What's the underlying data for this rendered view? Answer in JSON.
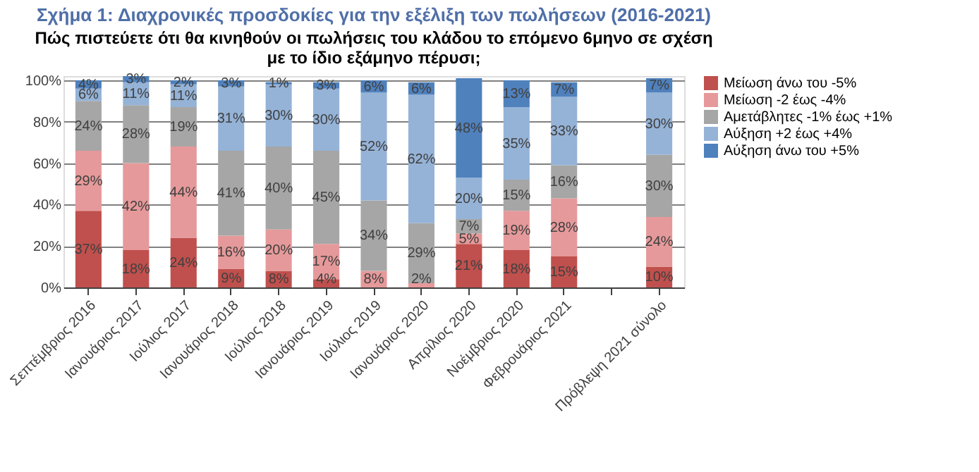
{
  "chart_data": {
    "type": "bar",
    "stacked": true,
    "title": "Σχήμα 1: Διαχρονικές προσδοκίες για την εξέλιξη των πωλήσεων (2016-2021)",
    "subtitle": "Πώς πιστεύετε ότι θα κινηθούν οι πωλήσεις του κλάδου το επόμενο 6μηνο σε σχέση\nμε το ίδιο εξάμηνο πέρυσι;",
    "categories": [
      "Σεπτέμβριος 2016",
      "Ιανουάριος 2017",
      "Ιούλιος 2017",
      "Ιανουάριος 2018",
      "Ιούλιος 2018",
      "Ιανουάριος 2019",
      "Ιούλιος 2019",
      "Ιανουάριος 2020",
      "Απρίλιος 2020",
      "Νοέμβριος 2020",
      "Φεβρουάριος 2021",
      null,
      "Πρόβλεψη 2021 σύνολο"
    ],
    "series": [
      {
        "name": "Μείωση άνω του -5%",
        "color": "#c0504d",
        "values": [
          37,
          18,
          24,
          9,
          8,
          4,
          null,
          null,
          21,
          18,
          15,
          null,
          10
        ],
        "value_labels": [
          "37%",
          "18%",
          "24%",
          "9%",
          "8%",
          "4%",
          null,
          null,
          "21%",
          "18%",
          "15%",
          null,
          "10%"
        ]
      },
      {
        "name": "Μείωση -2 έως -4%",
        "color": "#e6999a",
        "values": [
          29,
          42,
          44,
          16,
          20,
          17,
          8,
          2,
          5,
          19,
          28,
          null,
          24
        ],
        "value_labels": [
          "29%",
          "42%",
          "44%",
          "16%",
          "20%",
          "17%",
          "8%",
          "2%",
          "5%",
          "19%",
          "28%",
          null,
          "24%"
        ]
      },
      {
        "name": "Αμετάβλητες -1% έως +1%",
        "color": "#a6a6a6",
        "values": [
          24,
          28,
          19,
          41,
          40,
          45,
          34,
          29,
          7,
          15,
          16,
          null,
          30
        ],
        "value_labels": [
          "24%",
          "28%",
          "19%",
          "41%",
          "40%",
          "45%",
          "34%",
          "29%",
          "7%",
          "15%",
          "16%",
          null,
          "30%"
        ]
      },
      {
        "name": "Αύξηση +2 έως +4%",
        "color": "#95b3d7",
        "values": [
          6,
          11,
          11,
          31,
          30,
          30,
          52,
          62,
          20,
          35,
          33,
          null,
          30
        ],
        "value_labels": [
          "6%",
          "11%",
          "11%",
          "31%",
          "30%",
          "30%",
          "52%",
          "62%",
          "20%",
          "35%",
          "33%",
          null,
          "30%"
        ]
      },
      {
        "name": "Αύξηση άνω του +5%",
        "color": "#4f81bd",
        "values": [
          4,
          3,
          2,
          3,
          1,
          3,
          6,
          6,
          48,
          13,
          7,
          null,
          7
        ],
        "value_labels": [
          "4%",
          "3%",
          "2%",
          "3%",
          "1%",
          "3%",
          "6%",
          "6%",
          "48%",
          "13%",
          "7%",
          null,
          "7%"
        ]
      }
    ],
    "ylim": [
      0,
      102
    ],
    "yticks": [
      {
        "value": 0,
        "label": "0%"
      },
      {
        "value": 20,
        "label": "20%"
      },
      {
        "value": 40,
        "label": "40%"
      },
      {
        "value": 60,
        "label": "60%"
      },
      {
        "value": 80,
        "label": "80%"
      },
      {
        "value": 100,
        "label": "100%"
      }
    ],
    "grid": "y",
    "legend": "right"
  }
}
